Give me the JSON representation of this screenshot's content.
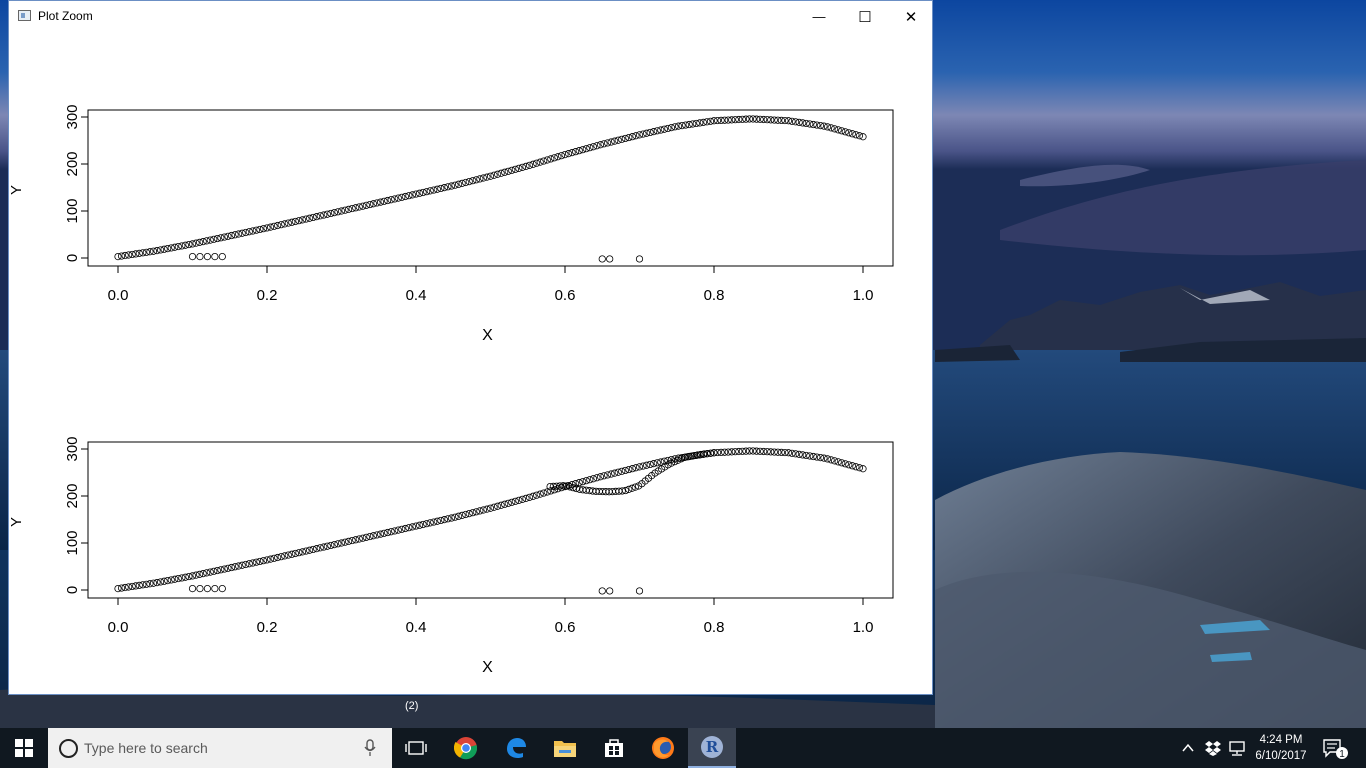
{
  "window": {
    "title": "Plot Zoom",
    "minimize_glyph": "—",
    "maximize_glyph": "☐",
    "close_glyph": "✕"
  },
  "plots": [
    {
      "type": "scatter",
      "xlabel": "X",
      "ylabel": "Y",
      "xlim": [
        0.0,
        1.0
      ],
      "ylim": [
        0,
        300
      ],
      "x_ticks": [
        "0.0",
        "0.2",
        "0.4",
        "0.6",
        "0.8",
        "1.0"
      ],
      "y_ticks": [
        "0",
        "100",
        "200",
        "300"
      ],
      "marker": "open-circle",
      "curves": [
        {
          "x": [
            0.0,
            0.05,
            0.1,
            0.15,
            0.2,
            0.25,
            0.3,
            0.35,
            0.4,
            0.45,
            0.5,
            0.55,
            0.6,
            0.65,
            0.7,
            0.75,
            0.8,
            0.85,
            0.9,
            0.95,
            1.0
          ],
          "y": [
            3,
            15,
            30,
            47,
            64,
            82,
            100,
            118,
            136,
            154,
            174,
            196,
            220,
            242,
            262,
            280,
            292,
            296,
            292,
            280,
            258
          ]
        }
      ],
      "outliers": {
        "x": [
          0.1,
          0.11,
          0.12,
          0.13,
          0.14,
          0.65,
          0.66,
          0.7
        ],
        "y": [
          3,
          3,
          3,
          3,
          3,
          -2,
          -2,
          -2
        ]
      }
    },
    {
      "type": "scatter",
      "xlabel": "X",
      "ylabel": "Y",
      "xlim": [
        0.0,
        1.0
      ],
      "ylim": [
        0,
        300
      ],
      "x_ticks": [
        "0.0",
        "0.2",
        "0.4",
        "0.6",
        "0.8",
        "1.0"
      ],
      "y_ticks": [
        "0",
        "100",
        "200",
        "300"
      ],
      "marker": "open-circle",
      "curves": [
        {
          "x": [
            0.0,
            0.05,
            0.1,
            0.15,
            0.2,
            0.25,
            0.3,
            0.35,
            0.4,
            0.45,
            0.5,
            0.55,
            0.6,
            0.65,
            0.7,
            0.75,
            0.8,
            0.85,
            0.9,
            0.95,
            1.0
          ],
          "y": [
            3,
            15,
            30,
            47,
            64,
            82,
            100,
            118,
            136,
            154,
            174,
            196,
            220,
            242,
            262,
            280,
            292,
            296,
            292,
            280,
            258
          ]
        },
        {
          "x": [
            0.58,
            0.6,
            0.62,
            0.64,
            0.66,
            0.68,
            0.7,
            0.72,
            0.74,
            0.76,
            0.78,
            0.8
          ],
          "y": [
            220,
            222,
            214,
            210,
            209,
            211,
            222,
            248,
            268,
            282,
            288,
            292
          ]
        }
      ],
      "outliers": {
        "x": [
          0.1,
          0.11,
          0.12,
          0.13,
          0.14,
          0.65,
          0.66,
          0.7
        ],
        "y": [
          3,
          3,
          3,
          3,
          3,
          -2,
          -2,
          -2
        ]
      }
    }
  ],
  "desktop": {
    "label": "(2)"
  },
  "taskbar": {
    "search_placeholder": "Type here to search",
    "apps": [
      "task-view",
      "chrome",
      "edge",
      "file-explorer",
      "store",
      "firefox",
      "r"
    ],
    "r_letter": "R",
    "clock_time": "4:24 PM",
    "clock_date": "6/10/2017",
    "notification_count": "1"
  }
}
